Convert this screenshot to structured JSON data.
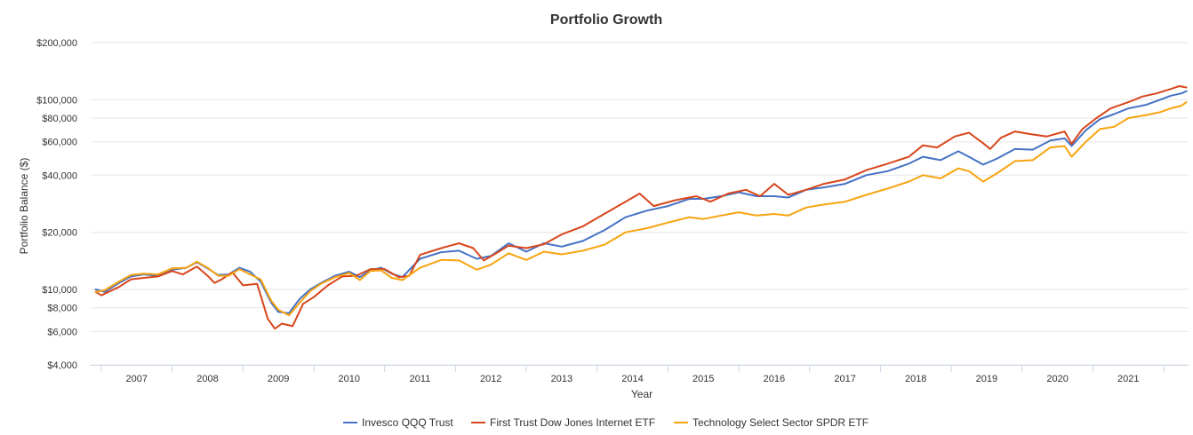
{
  "chart_data": {
    "type": "line",
    "title": "Portfolio Growth",
    "xlabel": "Year",
    "ylabel": "Portfolio Balance ($)",
    "yscale": "log",
    "ylim": [
      4000,
      200000
    ],
    "xlim": [
      2006.35,
      2021.85
    ],
    "y_ticks": [
      4000,
      6000,
      8000,
      10000,
      20000,
      40000,
      60000,
      80000,
      100000,
      200000
    ],
    "y_tick_labels": [
      "$4,000",
      "$6,000",
      "$8,000",
      "$10,000",
      "$20,000",
      "$40,000",
      "$60,000",
      "$80,000",
      "$100,000",
      "$200,000"
    ],
    "x_ticks": [
      2007,
      2008,
      2009,
      2010,
      2011,
      2012,
      2013,
      2014,
      2015,
      2016,
      2017,
      2018,
      2019,
      2020,
      2021
    ],
    "x_tick_labels": [
      "2007",
      "2008",
      "2009",
      "2010",
      "2011",
      "2012",
      "2013",
      "2014",
      "2015",
      "2016",
      "2017",
      "2018",
      "2019",
      "2020",
      "2021"
    ],
    "grid": true,
    "legend_position": "bottom",
    "series": [
      {
        "name": "Invesco QQQ Trust",
        "color": "#4572c4",
        "x": [
          2006.42,
          2006.55,
          2006.75,
          2006.92,
          2007.1,
          2007.3,
          2007.5,
          2007.7,
          2007.85,
          2008.0,
          2008.15,
          2008.3,
          2008.45,
          2008.6,
          2008.75,
          2008.9,
          2009.0,
          2009.15,
          2009.3,
          2009.45,
          2009.6,
          2009.8,
          2010.0,
          2010.15,
          2010.3,
          2010.45,
          2010.6,
          2010.75,
          2011.0,
          2011.3,
          2011.55,
          2011.8,
          2012.0,
          2012.25,
          2012.5,
          2012.75,
          2013.0,
          2013.3,
          2013.6,
          2013.9,
          2014.2,
          2014.5,
          2014.8,
          2015.0,
          2015.25,
          2015.5,
          2015.75,
          2016.0,
          2016.2,
          2016.45,
          2016.7,
          2017.0,
          2017.3,
          2017.6,
          2017.9,
          2018.1,
          2018.35,
          2018.6,
          2018.75,
          2018.95,
          2019.15,
          2019.4,
          2019.65,
          2019.9,
          2020.1,
          2020.2,
          2020.4,
          2020.6,
          2020.8,
          2021.0,
          2021.25,
          2021.45,
          2021.6,
          2021.75,
          2021.82
        ],
        "values": [
          10000,
          9700,
          10800,
          11700,
          12000,
          11800,
          12700,
          13000,
          13900,
          12900,
          11900,
          12000,
          13000,
          12400,
          11000,
          8500,
          7600,
          7500,
          8900,
          10000,
          10800,
          11800,
          12400,
          11600,
          12600,
          13000,
          12100,
          11600,
          14500,
          15700,
          16000,
          14500,
          15000,
          17500,
          15800,
          17500,
          16800,
          18000,
          20500,
          24000,
          26000,
          27500,
          30000,
          30000,
          31000,
          32500,
          31000,
          31000,
          30500,
          33500,
          34500,
          36000,
          40000,
          42000,
          46000,
          50000,
          48000,
          53500,
          50000,
          45500,
          49000,
          55000,
          54500,
          61000,
          62500,
          57000,
          69000,
          79000,
          84000,
          90000,
          94000,
          100000,
          105000,
          108000,
          111000
        ]
      },
      {
        "name": "First Trust Dow Jones Internet ETF",
        "color": "#d8461b",
        "x": [
          2006.42,
          2006.5,
          2006.75,
          2006.92,
          2007.1,
          2007.3,
          2007.5,
          2007.65,
          2007.85,
          2008.0,
          2008.1,
          2008.2,
          2008.35,
          2008.5,
          2008.7,
          2008.85,
          2008.95,
          2009.05,
          2009.2,
          2009.35,
          2009.5,
          2009.7,
          2009.9,
          2010.1,
          2010.3,
          2010.5,
          2010.7,
          2010.85,
          2011.0,
          2011.3,
          2011.55,
          2011.75,
          2011.9,
          2012.1,
          2012.25,
          2012.5,
          2012.75,
          2013.0,
          2013.3,
          2013.6,
          2013.9,
          2014.1,
          2014.3,
          2014.6,
          2014.9,
          2015.1,
          2015.35,
          2015.6,
          2015.8,
          2016.0,
          2016.2,
          2016.45,
          2016.7,
          2017.0,
          2017.3,
          2017.6,
          2017.9,
          2018.1,
          2018.3,
          2018.55,
          2018.75,
          2018.95,
          2019.05,
          2019.2,
          2019.4,
          2019.6,
          2019.85,
          2020.1,
          2020.2,
          2020.35,
          2020.55,
          2020.75,
          2021.0,
          2021.2,
          2021.4,
          2021.6,
          2021.72,
          2021.82
        ],
        "values": [
          9700,
          9300,
          10300,
          11300,
          11500,
          11700,
          12500,
          12000,
          13200,
          11800,
          10800,
          11300,
          12300,
          10500,
          10700,
          7000,
          6200,
          6600,
          6400,
          8400,
          9100,
          10500,
          11700,
          11800,
          12800,
          12800,
          11600,
          11800,
          15200,
          16500,
          17500,
          16500,
          14200,
          15700,
          17000,
          16500,
          17300,
          19500,
          21500,
          25000,
          29000,
          32000,
          27500,
          29500,
          31000,
          29000,
          32000,
          33500,
          31000,
          36000,
          31500,
          33500,
          36000,
          38000,
          42500,
          46000,
          50000,
          57500,
          56000,
          64000,
          67000,
          59000,
          55000,
          63000,
          68000,
          66000,
          64000,
          68000,
          58500,
          70000,
          80000,
          90000,
          97000,
          104000,
          108000,
          114000,
          118000,
          116000
        ]
      },
      {
        "name": "Technology Select Sector SPDR ETF",
        "color": "#f7a410",
        "x": [
          2006.42,
          2006.55,
          2006.75,
          2006.92,
          2007.1,
          2007.3,
          2007.5,
          2007.7,
          2007.85,
          2008.0,
          2008.15,
          2008.3,
          2008.45,
          2008.6,
          2008.75,
          2008.9,
          2009.0,
          2009.15,
          2009.3,
          2009.45,
          2009.6,
          2009.8,
          2010.0,
          2010.15,
          2010.3,
          2010.45,
          2010.6,
          2010.75,
          2011.0,
          2011.3,
          2011.55,
          2011.8,
          2012.0,
          2012.25,
          2012.5,
          2012.75,
          2013.0,
          2013.3,
          2013.6,
          2013.9,
          2014.2,
          2014.5,
          2014.8,
          2015.0,
          2015.25,
          2015.5,
          2015.75,
          2016.0,
          2016.2,
          2016.45,
          2016.7,
          2017.0,
          2017.3,
          2017.6,
          2017.9,
          2018.1,
          2018.35,
          2018.6,
          2018.75,
          2018.95,
          2019.15,
          2019.4,
          2019.65,
          2019.9,
          2020.1,
          2020.2,
          2020.4,
          2020.6,
          2020.8,
          2021.0,
          2021.25,
          2021.45,
          2021.6,
          2021.75,
          2021.82
        ],
        "values": [
          9700,
          9900,
          11000,
          11900,
          12100,
          12000,
          12900,
          13000,
          14000,
          13000,
          11800,
          11800,
          12800,
          12000,
          11300,
          8700,
          7800,
          7300,
          8500,
          9800,
          10700,
          11600,
          12200,
          11200,
          12500,
          12600,
          11500,
          11200,
          13000,
          14300,
          14200,
          12700,
          13500,
          15500,
          14300,
          15800,
          15300,
          16000,
          17200,
          20000,
          21000,
          22500,
          24000,
          23500,
          24500,
          25500,
          24500,
          25000,
          24500,
          27000,
          28000,
          29000,
          31500,
          34000,
          37000,
          40000,
          38500,
          43500,
          42000,
          37000,
          41000,
          47500,
          48000,
          56000,
          57000,
          50000,
          60000,
          70000,
          72000,
          80000,
          83000,
          86000,
          90000,
          93000,
          97000
        ]
      }
    ]
  }
}
